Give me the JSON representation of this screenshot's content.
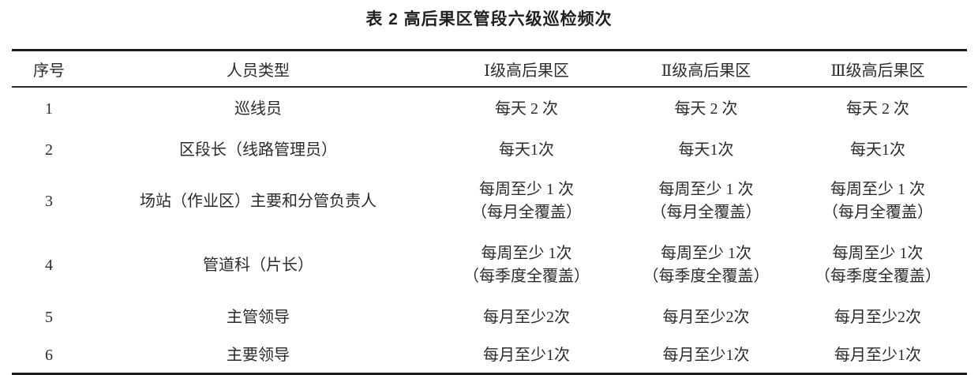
{
  "title": "表 2 高后果区管段六级巡检频次",
  "table": {
    "headers": [
      "序号",
      "人员类型",
      "Ⅰ级高后果区",
      "Ⅱ级高后果区",
      "Ⅲ级高后果区"
    ],
    "rows": [
      [
        "1",
        "巡线员",
        "每天 2 次",
        "每天 2 次",
        "每天 2 次"
      ],
      [
        "2",
        "区段长（线路管理员）",
        "每天1次",
        "每天1次",
        "每天1次"
      ],
      [
        "3",
        "场站（作业区）主要和分管负责人",
        "每周至少 1 次\n（每月全覆盖）",
        "每周至少 1 次\n（每月全覆盖）",
        "每周至少 1 次\n（每月全覆盖）"
      ],
      [
        "4",
        "管道科（片长）",
        "每周至少 1次\n（每季度全覆盖）",
        "每周至少 1次\n（每季度全覆盖）",
        "每周至少 1次\n（每季度全覆盖）"
      ],
      [
        "5",
        "主管领导",
        "每月至少2次",
        "每月至少2次",
        "每月至少2次"
      ],
      [
        "6",
        "主要领导",
        "每月至少1次",
        "每月至少1次",
        "每月至少1次"
      ]
    ]
  }
}
